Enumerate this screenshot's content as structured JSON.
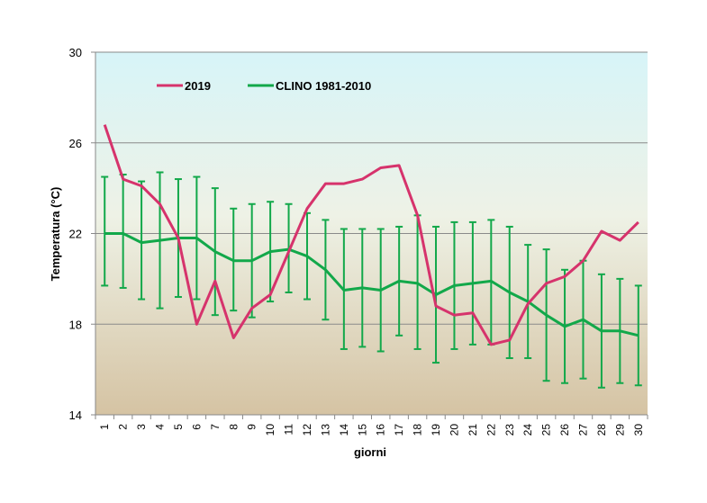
{
  "chart_data": {
    "type": "line",
    "xlabel": "giorni",
    "ylabel": "Temperatura (°C)",
    "ylim": [
      14,
      30
    ],
    "yticks": [
      "14",
      "18",
      "22",
      "26",
      "30"
    ],
    "categories": [
      "1",
      "2",
      "3",
      "4",
      "5",
      "6",
      "7",
      "8",
      "9",
      "10",
      "11",
      "12",
      "13",
      "14",
      "15",
      "16",
      "17",
      "18",
      "19",
      "20",
      "21",
      "22",
      "23",
      "24",
      "25",
      "26",
      "27",
      "28",
      "29",
      "30"
    ],
    "grid": "horizontal",
    "legend_position": "top-left",
    "background": "gradient light cyan to beige",
    "series": [
      {
        "name": "2019",
        "color": "#d6336c",
        "values": [
          26.8,
          24.4,
          24.1,
          23.3,
          21.8,
          18.0,
          19.9,
          17.4,
          18.7,
          19.3,
          21.2,
          23.1,
          24.2,
          24.2,
          24.4,
          24.9,
          25.0,
          22.8,
          18.8,
          18.4,
          18.5,
          17.1,
          17.3,
          18.9,
          19.8,
          20.1,
          20.8,
          22.1,
          21.7,
          22.5
        ]
      },
      {
        "name": "CLINO 1981-2010",
        "color": "#12a84a",
        "values": [
          22.0,
          22.0,
          21.6,
          21.7,
          21.8,
          21.8,
          21.2,
          20.8,
          20.8,
          21.2,
          21.3,
          21.0,
          20.4,
          19.5,
          19.6,
          19.5,
          19.9,
          19.8,
          19.3,
          19.7,
          19.8,
          19.9,
          19.4,
          19.0,
          18.4,
          17.9,
          18.2,
          17.7,
          17.7,
          17.5
        ],
        "error_low": [
          19.7,
          19.6,
          19.1,
          18.7,
          19.2,
          19.1,
          18.4,
          18.6,
          18.3,
          19.0,
          19.4,
          19.1,
          18.2,
          16.9,
          17.0,
          16.8,
          17.5,
          16.9,
          16.3,
          16.9,
          17.1,
          17.1,
          16.5,
          16.5,
          15.5,
          15.4,
          15.6,
          15.2,
          15.4,
          15.3
        ],
        "error_high": [
          24.5,
          24.6,
          24.3,
          24.7,
          24.4,
          24.5,
          24.0,
          23.1,
          23.3,
          23.4,
          23.3,
          22.9,
          22.6,
          22.2,
          22.2,
          22.2,
          22.3,
          22.8,
          22.3,
          22.5,
          22.5,
          22.6,
          22.3,
          21.5,
          21.3,
          20.4,
          20.8,
          20.2,
          20.0,
          19.7
        ]
      }
    ]
  }
}
